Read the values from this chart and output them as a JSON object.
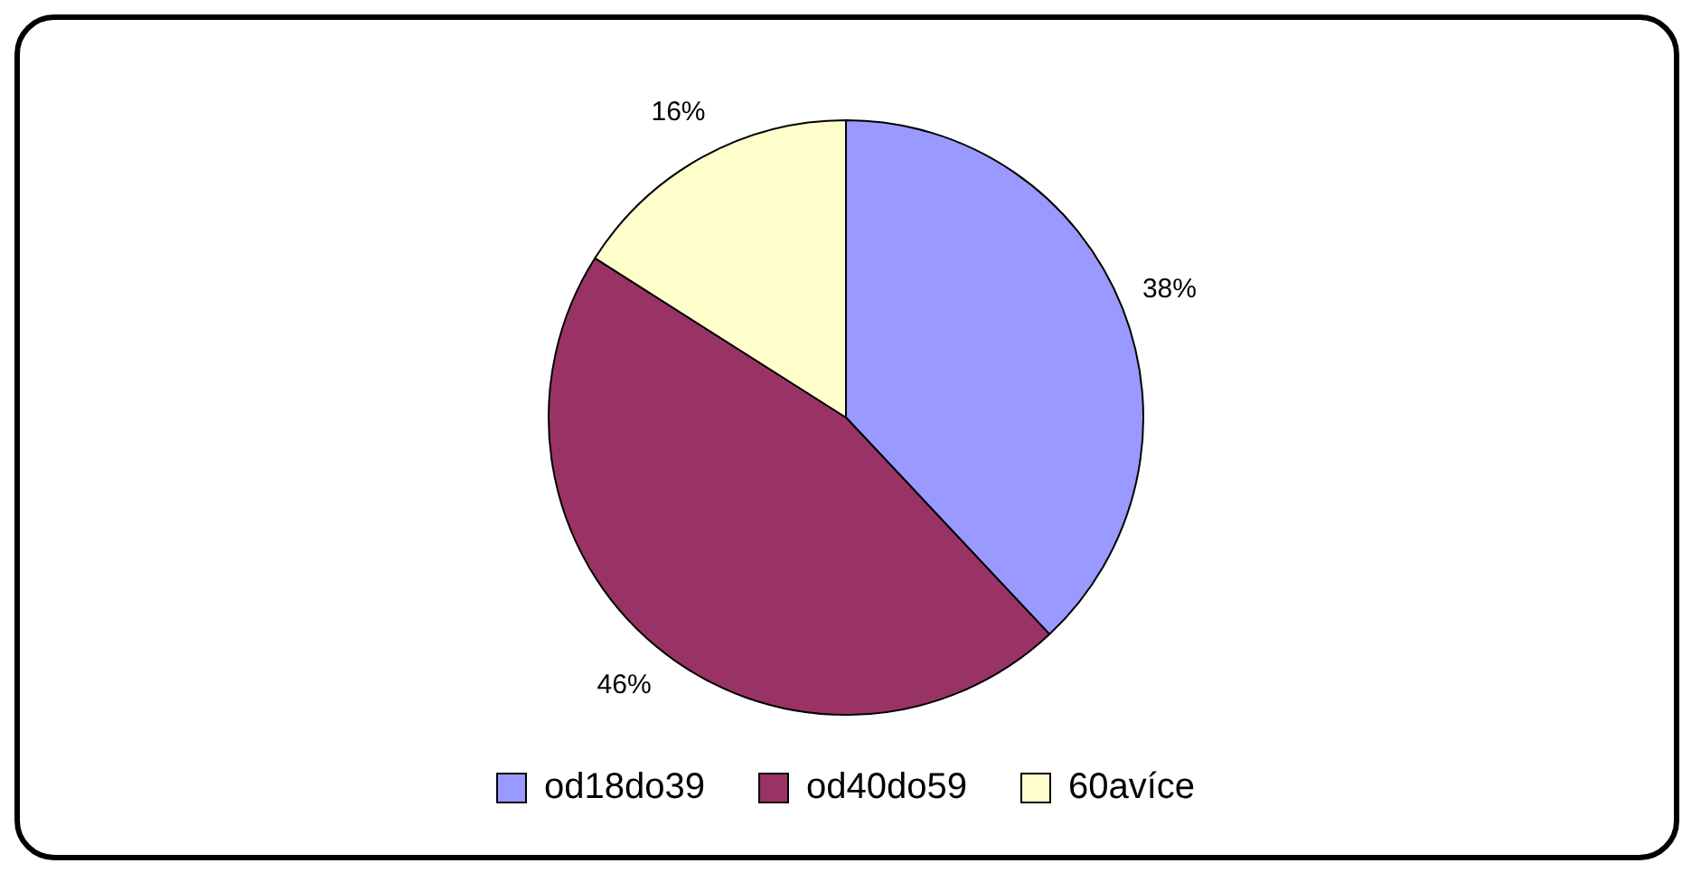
{
  "chart_data": {
    "type": "pie",
    "categories": [
      "od18do39",
      "od40do59",
      "60avíce"
    ],
    "values": [
      38,
      46,
      16
    ],
    "colors": [
      "#9999ff",
      "#993366",
      "#ffffcc"
    ],
    "value_labels": [
      "38%",
      "46%",
      "16%"
    ],
    "legend": "bottom"
  }
}
